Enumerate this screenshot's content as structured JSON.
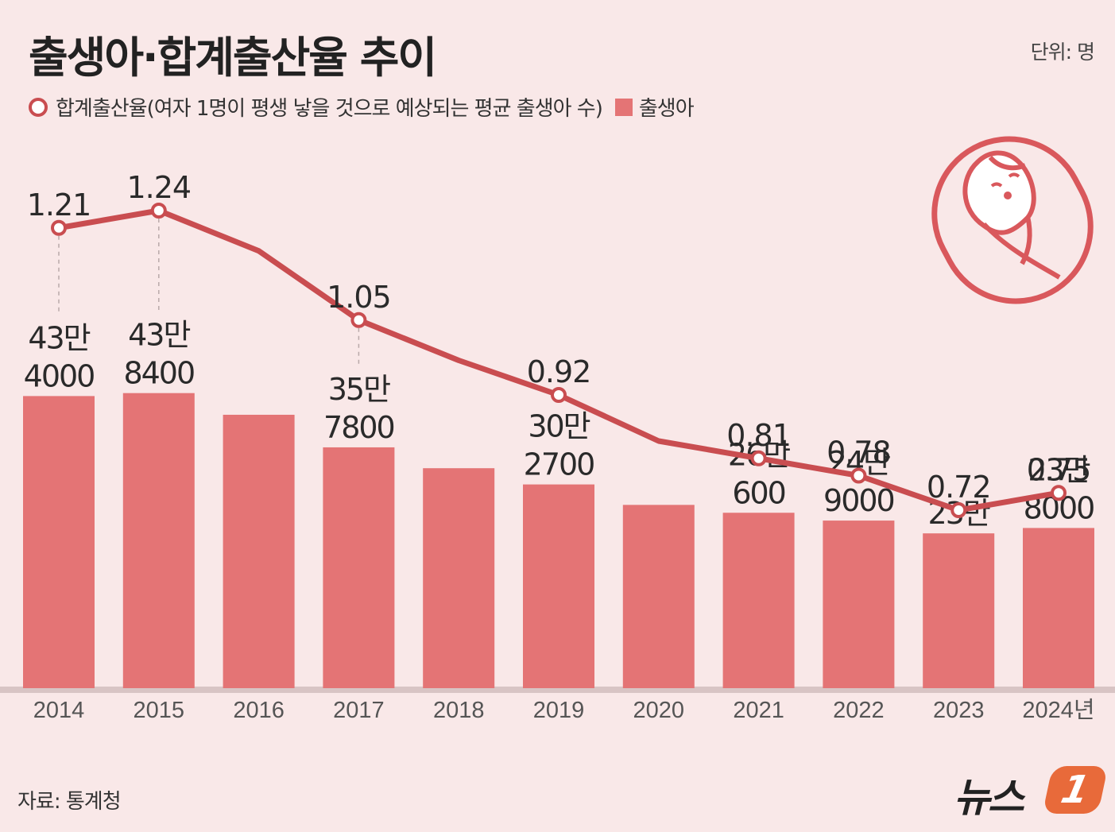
{
  "header": {
    "title": "출생아·합계출산율 추이",
    "unit": "단위: 명"
  },
  "legend": {
    "line_label": "합계출산율(여자 1명이 평생 낳을 것으로 예상되는 평균 출생아 수)",
    "bar_label": "출생아"
  },
  "colors": {
    "background": "#f9e8e8",
    "bar": "#e47475",
    "line": "#c94d50",
    "text": "#2a2a2a"
  },
  "chart_data": {
    "type": "bar",
    "title": "출생아·합계출산율 추이",
    "categories": [
      "2014",
      "2015",
      "2016",
      "2017",
      "2018",
      "2019",
      "2020",
      "2021",
      "2022",
      "2023",
      "2024년"
    ],
    "series": [
      {
        "name": "출생아",
        "type": "bar",
        "values": [
          434000,
          438400,
          406200,
          357800,
          326800,
          302700,
          272300,
          260600,
          249000,
          230000,
          238000
        ],
        "labels": [
          [
            "43만",
            "4000"
          ],
          [
            "43만",
            "8400"
          ],
          null,
          [
            "35만",
            "7800"
          ],
          null,
          [
            "30만",
            "2700"
          ],
          null,
          [
            "26만",
            "600"
          ],
          [
            "24만",
            "9000"
          ],
          [
            "23만"
          ],
          [
            "23만",
            "8000"
          ]
        ]
      },
      {
        "name": "합계출산율",
        "type": "line",
        "values": [
          1.21,
          1.24,
          1.17,
          1.05,
          0.98,
          0.92,
          0.84,
          0.81,
          0.78,
          0.72,
          0.75
        ],
        "labels": [
          "1.21",
          "1.24",
          null,
          "1.05",
          null,
          "0.92",
          null,
          "0.81",
          "0.78",
          "0.72",
          "0.75"
        ]
      }
    ],
    "ylabel": "명",
    "legend": "top-left"
  },
  "footer": {
    "source": "자료: 통계청",
    "logo_text": "뉴스",
    "logo_badge": "1"
  }
}
